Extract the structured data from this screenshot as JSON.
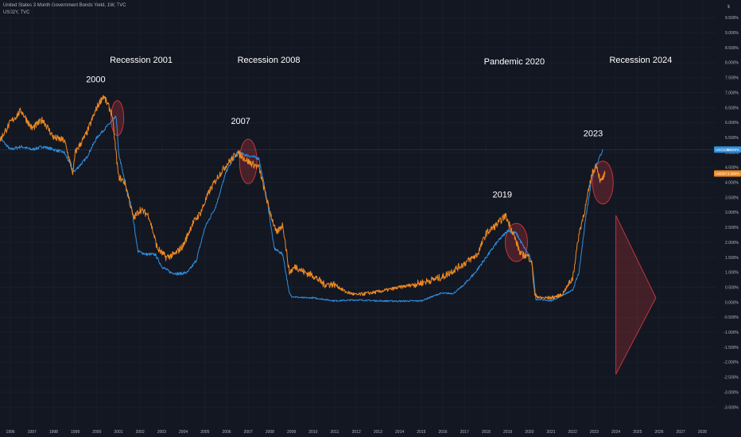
{
  "header": {
    "series1_title": "United States 3 Month Government Bonds Yield, 1W, TVC",
    "series2_title": "US02Y, TVC",
    "scale_top_label": "$"
  },
  "colors": {
    "background": "#131722",
    "grid": "#1e2230",
    "series_3m": "#2f8fe0",
    "series_2y": "#ef8a23",
    "highlight": "#c2353b",
    "axis_text": "#b2b5be"
  },
  "chart_data": {
    "type": "line",
    "x_ticks": [
      "1996",
      "1997",
      "1998",
      "1999",
      "2000",
      "2001",
      "2002",
      "2003",
      "2004",
      "2005",
      "2006",
      "2007",
      "2008",
      "2009",
      "2010",
      "2011",
      "2012",
      "2013",
      "2014",
      "2015",
      "2016",
      "2017",
      "2018",
      "2019",
      "2020",
      "2021",
      "2022",
      "2023",
      "2024",
      "2025",
      "2026",
      "2027",
      "2028"
    ],
    "y_ticks": [
      "9.500%",
      "9.000%",
      "8.500%",
      "8.000%",
      "7.500%",
      "7.000%",
      "6.500%",
      "6.000%",
      "5.500%",
      "5.000%",
      "4.500%",
      "4.000%",
      "3.500%",
      "3.000%",
      "2.500%",
      "2.000%",
      "1.500%",
      "1.000%",
      "0.500%",
      "0.000%",
      "-0.500%",
      "-1.000%",
      "-1.500%",
      "-2.000%",
      "-2.500%",
      "-3.000%",
      "-3.500%"
    ],
    "ylim": [
      -3.75,
      9.75
    ],
    "xlim": [
      1995.5,
      2028.6
    ],
    "grid": true,
    "series": [
      {
        "name": "USGS3M",
        "color": "#2f8fe0",
        "last_label": "5.099%",
        "x": [
          1995.5,
          1996.0,
          1996.5,
          1997.0,
          1997.5,
          1998.0,
          1998.5,
          1998.9,
          1999.0,
          1999.5,
          2000.0,
          2000.5,
          2000.9,
          2001.0,
          2001.3,
          2001.6,
          2001.9,
          2002.3,
          2002.7,
          2003.0,
          2003.4,
          2003.8,
          2004.2,
          2004.6,
          2005.0,
          2005.5,
          2006.0,
          2006.5,
          2007.0,
          2007.5,
          2007.9,
          2008.2,
          2008.6,
          2008.9,
          2009.0,
          2009.5,
          2010.0,
          2011.0,
          2012.0,
          2013.0,
          2014.0,
          2015.0,
          2015.9,
          2016.5,
          2017.0,
          2017.5,
          2018.0,
          2018.5,
          2019.0,
          2019.4,
          2019.7,
          2020.0,
          2020.15,
          2020.3,
          2020.5,
          2021.0,
          2022.0,
          2022.3,
          2022.6,
          2022.9,
          2023.1,
          2023.4
        ],
        "y": [
          5.5,
          5.1,
          5.2,
          5.1,
          5.2,
          5.1,
          5.0,
          4.4,
          4.4,
          4.8,
          5.5,
          5.9,
          6.2,
          5.0,
          4.0,
          3.2,
          1.7,
          1.6,
          1.6,
          1.2,
          1.0,
          0.95,
          1.0,
          1.4,
          2.5,
          3.2,
          4.4,
          5.0,
          4.9,
          4.8,
          3.3,
          1.8,
          1.6,
          0.3,
          0.2,
          0.15,
          0.15,
          0.05,
          0.08,
          0.05,
          0.04,
          0.05,
          0.3,
          0.3,
          0.6,
          1.0,
          1.5,
          2.0,
          2.4,
          2.3,
          1.9,
          1.55,
          1.2,
          0.1,
          0.1,
          0.05,
          0.4,
          1.0,
          2.8,
          4.2,
          4.6,
          5.1
        ]
      },
      {
        "name": "US02Y",
        "color": "#ef8a23",
        "last_label": "4.326%",
        "x": [
          1995.5,
          1996.0,
          1996.5,
          1997.0,
          1997.5,
          1998.0,
          1998.5,
          1998.9,
          1999.0,
          1999.5,
          2000.0,
          2000.3,
          2000.7,
          2001.0,
          2001.3,
          2001.7,
          2002.0,
          2002.4,
          2002.8,
          2003.2,
          2003.6,
          2004.0,
          2004.4,
          2004.8,
          2005.2,
          2005.6,
          2006.0,
          2006.5,
          2007.0,
          2007.5,
          2007.9,
          2008.3,
          2008.6,
          2008.9,
          2009.2,
          2009.6,
          2010.0,
          2010.5,
          2011.0,
          2011.5,
          2012.0,
          2013.0,
          2014.0,
          2015.0,
          2016.0,
          2017.0,
          2017.6,
          2018.0,
          2018.5,
          2018.9,
          2019.2,
          2019.6,
          2019.9,
          2020.1,
          2020.25,
          2020.5,
          2021.0,
          2021.5,
          2022.0,
          2022.3,
          2022.6,
          2022.9,
          2023.1,
          2023.3,
          2023.5
        ],
        "y": [
          5.4,
          6.0,
          6.4,
          5.8,
          6.1,
          5.5,
          5.4,
          4.3,
          5.0,
          5.6,
          6.5,
          6.9,
          6.3,
          4.2,
          4.0,
          2.8,
          3.1,
          2.9,
          1.8,
          1.5,
          1.6,
          1.9,
          2.6,
          3.0,
          3.7,
          4.2,
          4.6,
          5.0,
          4.7,
          4.5,
          3.3,
          2.3,
          2.6,
          1.0,
          1.2,
          1.0,
          0.9,
          0.6,
          0.6,
          0.35,
          0.25,
          0.35,
          0.5,
          0.65,
          0.85,
          1.3,
          1.6,
          2.3,
          2.6,
          2.9,
          2.4,
          1.6,
          1.55,
          1.4,
          0.25,
          0.15,
          0.15,
          0.25,
          0.8,
          2.3,
          3.2,
          4.3,
          4.6,
          4.0,
          4.3
        ]
      }
    ],
    "annotations": [
      {
        "text": "Recession 2001",
        "x": 2000.6,
        "y": 8.0
      },
      {
        "text": "Recession 2008",
        "x": 2006.5,
        "y": 8.0
      },
      {
        "text": "2000",
        "x": 1999.5,
        "y": 7.35
      },
      {
        "text": "2007",
        "x": 2006.2,
        "y": 5.95
      },
      {
        "text": "Pandemic 2020",
        "x": 2017.9,
        "y": 7.95
      },
      {
        "text": "Recession 2024",
        "x": 2023.7,
        "y": 8.0
      },
      {
        "text": "2023",
        "x": 2022.5,
        "y": 5.55
      },
      {
        "text": "2019",
        "x": 2018.3,
        "y": 3.5
      }
    ]
  }
}
